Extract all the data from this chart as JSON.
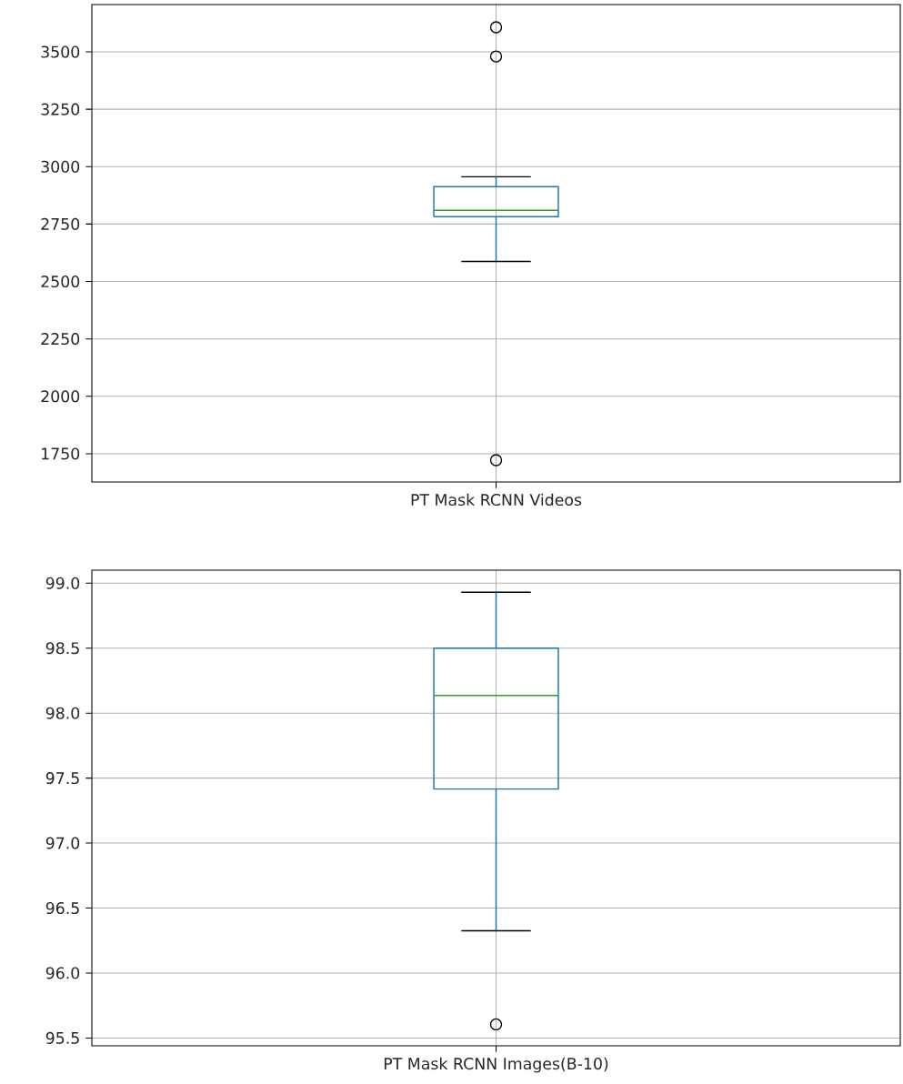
{
  "chart_data": [
    {
      "type": "box",
      "categories": [
        "PT Mask RCNN Videos"
      ],
      "color": "#1f77b4",
      "marker": "circle",
      "grid": true,
      "ylim": [
        1627,
        3706
      ],
      "yticks": [
        1750,
        2000,
        2250,
        2500,
        2750,
        3000,
        3250,
        3500
      ],
      "boxes": [
        {
          "low": 2587,
          "q1": 2782,
          "median": 2810,
          "q3": 2913,
          "high": 2956,
          "outliers": [
            3607,
            3480,
            1722
          ]
        }
      ]
    },
    {
      "type": "box",
      "categories": [
        "PT Mask RCNN Images(B-10)"
      ],
      "color": "#1f77b4",
      "marker": "circle",
      "grid": true,
      "ylim": [
        95.44,
        99.1
      ],
      "yticks": [
        95.5,
        {
          "value": 96,
          "label": "96.0"
        },
        96.5,
        {
          "value": 97,
          "label": "97.0"
        },
        97.5,
        {
          "value": 98,
          "label": "98.0"
        },
        98.5,
        {
          "value": 99,
          "label": "99.0"
        }
      ],
      "boxes": [
        {
          "low": 96.325,
          "q1": 97.416,
          "median": 98.136,
          "q3": 98.5,
          "high": 98.93,
          "outliers": [
            95.605
          ]
        }
      ]
    }
  ]
}
